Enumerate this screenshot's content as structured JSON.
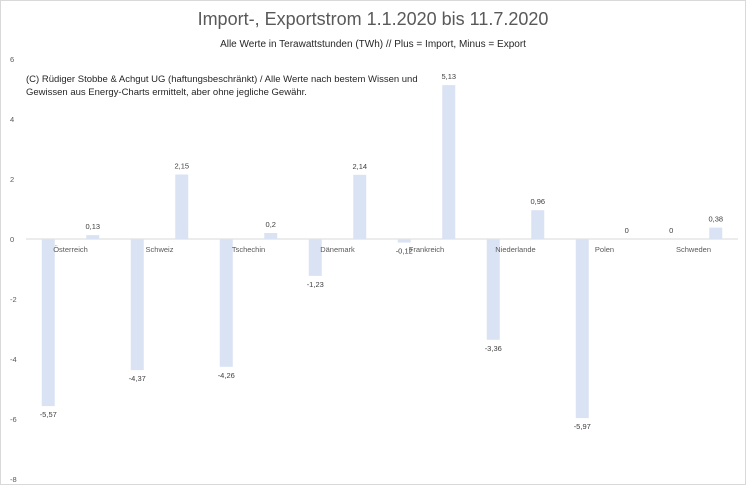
{
  "chart_data": {
    "type": "bar",
    "title": "Import-, Exportstrom 1.1.2020 bis 11.7.2020",
    "subtitle": "Alle Werte in Terawattstunden (TWh) // Plus = Import, Minus = Export",
    "note": "(C) Rüdiger Stobbe & Achgut UG (haftungsbeschränkt) / Alle Werte nach bestem Wissen und Gewissen aus Energy-Charts ermittelt, aber ohne jegliche Gewähr.",
    "categories": [
      "Österreich",
      "Schweiz",
      "Tschechin",
      "Dänemark",
      "Frankreich",
      "Niederlande",
      "Polen",
      "Schweden"
    ],
    "series": [
      {
        "values": [
          -5.57,
          -4.37,
          -4.26,
          -1.23,
          -0.12,
          -3.36,
          -5.97,
          0
        ]
      },
      {
        "values": [
          0.13,
          2.15,
          0.2,
          2.14,
          5.13,
          0.96,
          0,
          0.38
        ]
      }
    ],
    "data_labels": [
      [
        "-5,57",
        "-4,37",
        "-4,26",
        "-1,23",
        "-0,12",
        "-3,36",
        "-5,97",
        "0"
      ],
      [
        "0,13",
        "2,15",
        "0,2",
        "2,14",
        "5,13",
        "0,96",
        "0",
        "0,38"
      ]
    ],
    "yticks": [
      "6",
      "4",
      "2",
      "0",
      "-2",
      "-4",
      "-6",
      "-8"
    ],
    "ylim": [
      -8,
      6
    ],
    "grid": false,
    "colors": {
      "bar": "#dae3f3",
      "axis": "#d9d9d9"
    }
  }
}
